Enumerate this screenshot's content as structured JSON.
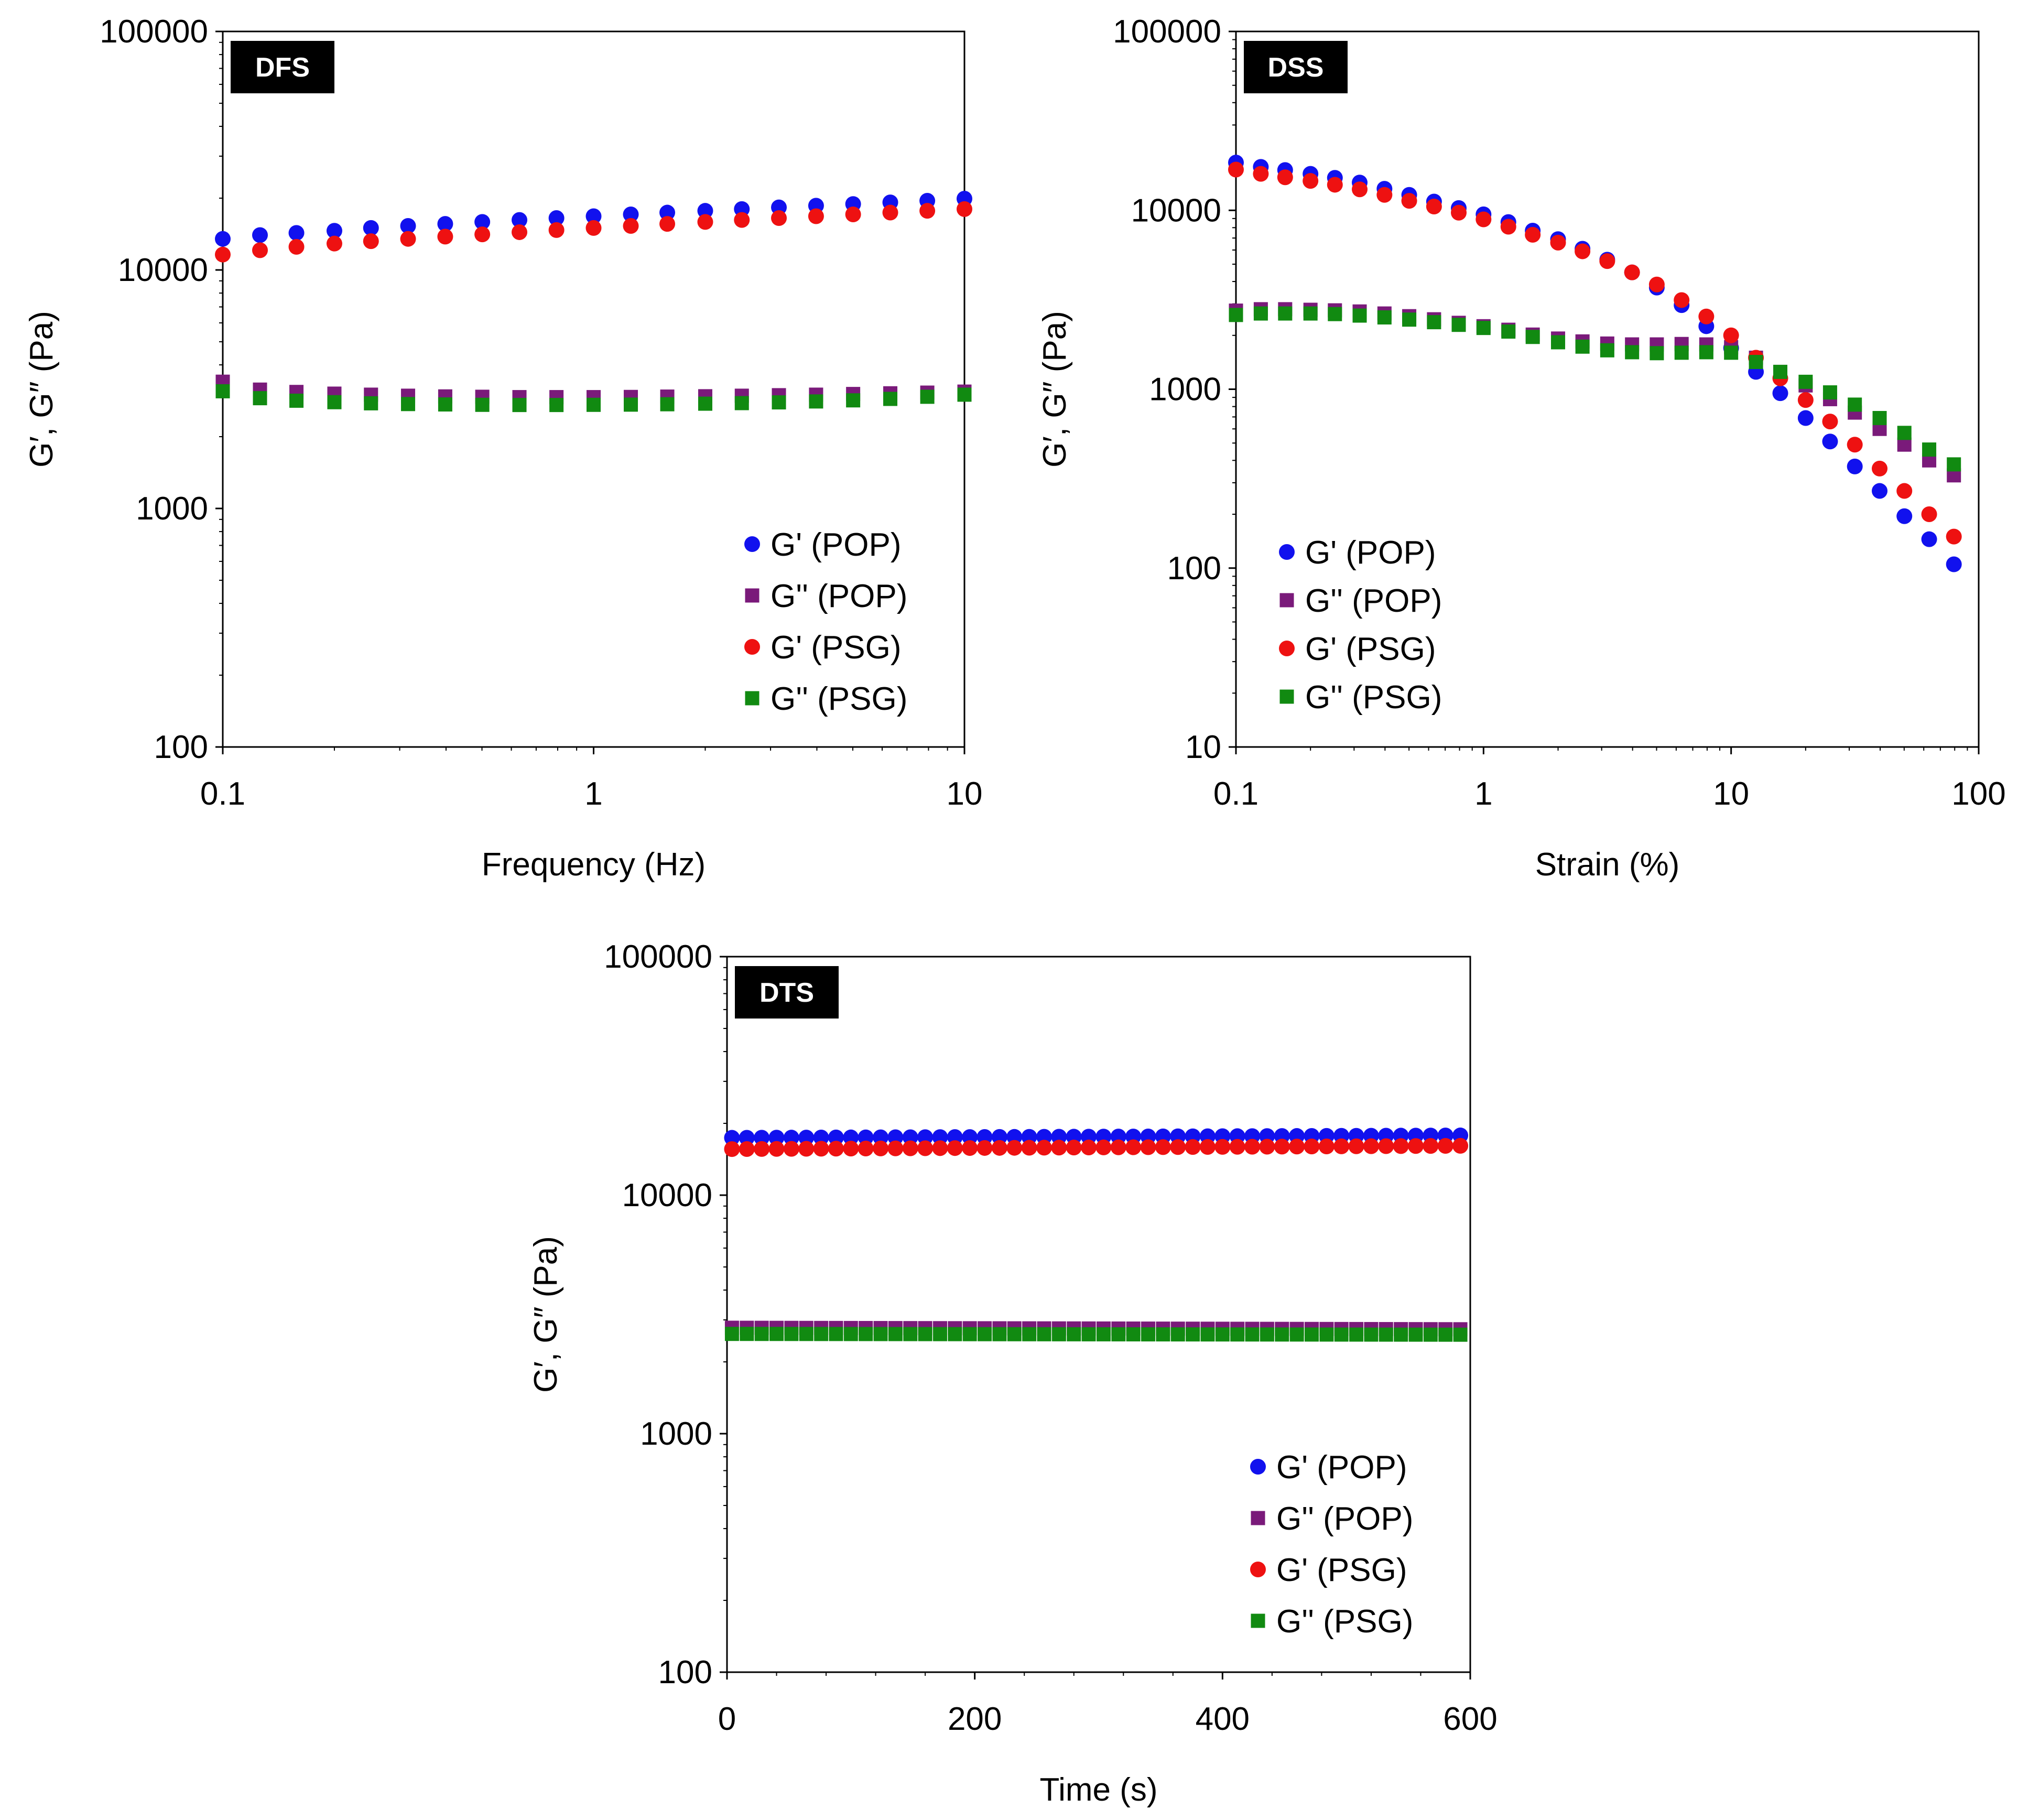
{
  "colors": {
    "pop_storage": "#1111ee",
    "pop_loss": "#7a1a7a",
    "psg_storage": "#ee1111",
    "psg_loss": "#118a11",
    "badge_bg": "#000000"
  },
  "chart_data": [
    {
      "id": "dfs",
      "type": "scatter",
      "badge": "DFS",
      "xlabel": "Frequency (Hz)",
      "ylabel": "G′, G″ (Pa)",
      "xscale": "log",
      "yscale": "log",
      "xlim": [
        0.1,
        10
      ],
      "ylim": [
        100,
        100000
      ],
      "xticks": [
        "0.1",
        "1",
        "10"
      ],
      "yticks": [
        "100",
        "1000",
        "10000",
        "100000"
      ],
      "legend_position": "bottom-right",
      "x": [
        0.1,
        0.126,
        0.158,
        0.2,
        0.251,
        0.316,
        0.398,
        0.501,
        0.631,
        0.794,
        1.0,
        1.26,
        1.58,
        2.0,
        2.51,
        3.16,
        3.98,
        5.01,
        6.31,
        7.94,
        10.0
      ],
      "series": [
        {
          "name": "G' (POP)",
          "marker": "circle",
          "color_key": "pop_storage",
          "values": [
            13500,
            14000,
            14300,
            14600,
            15000,
            15300,
            15600,
            15900,
            16200,
            16500,
            16800,
            17100,
            17400,
            17700,
            18000,
            18300,
            18600,
            18900,
            19200,
            19500,
            19900
          ]
        },
        {
          "name": "G'' (POP)",
          "marker": "square",
          "color_key": "pop_loss",
          "values": [
            3400,
            3150,
            3080,
            3030,
            3000,
            2970,
            2950,
            2940,
            2930,
            2930,
            2930,
            2935,
            2945,
            2955,
            2970,
            2985,
            3000,
            3020,
            3040,
            3060,
            3090
          ]
        },
        {
          "name": "G' (PSG)",
          "marker": "circle",
          "color_key": "psg_storage",
          "values": [
            11600,
            12100,
            12500,
            12900,
            13200,
            13500,
            13800,
            14100,
            14400,
            14700,
            15000,
            15300,
            15600,
            15900,
            16200,
            16500,
            16800,
            17100,
            17400,
            17700,
            18000
          ]
        },
        {
          "name": "G'' (PSG)",
          "marker": "square",
          "color_key": "psg_loss",
          "values": [
            3100,
            2900,
            2830,
            2790,
            2760,
            2740,
            2730,
            2720,
            2715,
            2715,
            2720,
            2725,
            2735,
            2750,
            2765,
            2785,
            2810,
            2840,
            2880,
            2940,
            3000
          ]
        }
      ]
    },
    {
      "id": "dss",
      "type": "scatter",
      "badge": "DSS",
      "xlabel": "Strain (%)",
      "ylabel": "G′, G″ (Pa)",
      "xscale": "log",
      "yscale": "log",
      "xlim": [
        0.1,
        100
      ],
      "ylim": [
        10,
        100000
      ],
      "xticks": [
        "0.1",
        "1",
        "10",
        "100"
      ],
      "yticks": [
        "10",
        "100",
        "1000",
        "10000",
        "100000"
      ],
      "legend_position": "bottom-left",
      "x": [
        0.1,
        0.126,
        0.158,
        0.2,
        0.251,
        0.316,
        0.398,
        0.501,
        0.631,
        0.794,
        1.0,
        1.26,
        1.58,
        2.0,
        2.51,
        3.16,
        3.98,
        5.01,
        6.31,
        7.94,
        10.0,
        12.6,
        15.8,
        20.0,
        25.1,
        31.6,
        39.8,
        50.1,
        63.1,
        79.4
      ],
      "series": [
        {
          "name": "G' (POP)",
          "marker": "circle",
          "color_key": "pop_storage",
          "values": [
            18500,
            17500,
            16800,
            16000,
            15200,
            14300,
            13200,
            12200,
            11200,
            10300,
            9500,
            8600,
            7700,
            6900,
            6100,
            5300,
            4500,
            3700,
            2950,
            2250,
            1700,
            1250,
            950,
            690,
            510,
            370,
            270,
            195,
            145,
            105
          ]
        },
        {
          "name": "G'' (POP)",
          "marker": "square",
          "color_key": "pop_loss",
          "values": [
            2750,
            2800,
            2800,
            2780,
            2760,
            2720,
            2650,
            2560,
            2460,
            2350,
            2250,
            2150,
            2020,
            1920,
            1850,
            1800,
            1780,
            1780,
            1790,
            1780,
            1720,
            1500,
            1250,
            1050,
            880,
            740,
            600,
            490,
            400,
            330
          ]
        },
        {
          "name": "G' (PSG)",
          "marker": "circle",
          "color_key": "psg_storage",
          "values": [
            16900,
            16000,
            15300,
            14600,
            13900,
            13100,
            12200,
            11300,
            10500,
            9700,
            8900,
            8100,
            7300,
            6600,
            5900,
            5200,
            4500,
            3850,
            3150,
            2550,
            2000,
            1500,
            1150,
            870,
            660,
            490,
            360,
            270,
            200,
            150
          ]
        },
        {
          "name": "G'' (PSG)",
          "marker": "square",
          "color_key": "psg_loss",
          "values": [
            2600,
            2650,
            2650,
            2650,
            2630,
            2580,
            2520,
            2450,
            2370,
            2290,
            2200,
            2100,
            1960,
            1830,
            1730,
            1650,
            1610,
            1590,
            1600,
            1610,
            1600,
            1420,
            1250,
            1100,
            960,
            820,
            690,
            570,
            460,
            380
          ]
        }
      ]
    },
    {
      "id": "dts",
      "type": "scatter",
      "badge": "DTS",
      "xlabel": "Time (s)",
      "ylabel": "G′, G″ (Pa)",
      "xscale": "linear",
      "yscale": "log",
      "xlim": [
        0,
        600
      ],
      "ylim": [
        100,
        100000
      ],
      "xticks": [
        "0",
        "200",
        "400",
        "600"
      ],
      "yticks": [
        "100",
        "1000",
        "10000",
        "100000"
      ],
      "legend_position": "bottom-right",
      "x_series": {
        "start": 4,
        "step": 12,
        "count": 50
      },
      "series": [
        {
          "name": "G' (POP)",
          "marker": "circle",
          "color_key": "pop_storage",
          "start": 17400,
          "end": 17800
        },
        {
          "name": "G'' (POP)",
          "marker": "square",
          "color_key": "pop_loss",
          "start": 2780,
          "end": 2740
        },
        {
          "name": "G' (PSG)",
          "marker": "circle",
          "color_key": "psg_storage",
          "start": 15600,
          "end": 16100
        },
        {
          "name": "G'' (PSG)",
          "marker": "square",
          "color_key": "psg_loss",
          "start": 2620,
          "end": 2600
        }
      ]
    }
  ]
}
